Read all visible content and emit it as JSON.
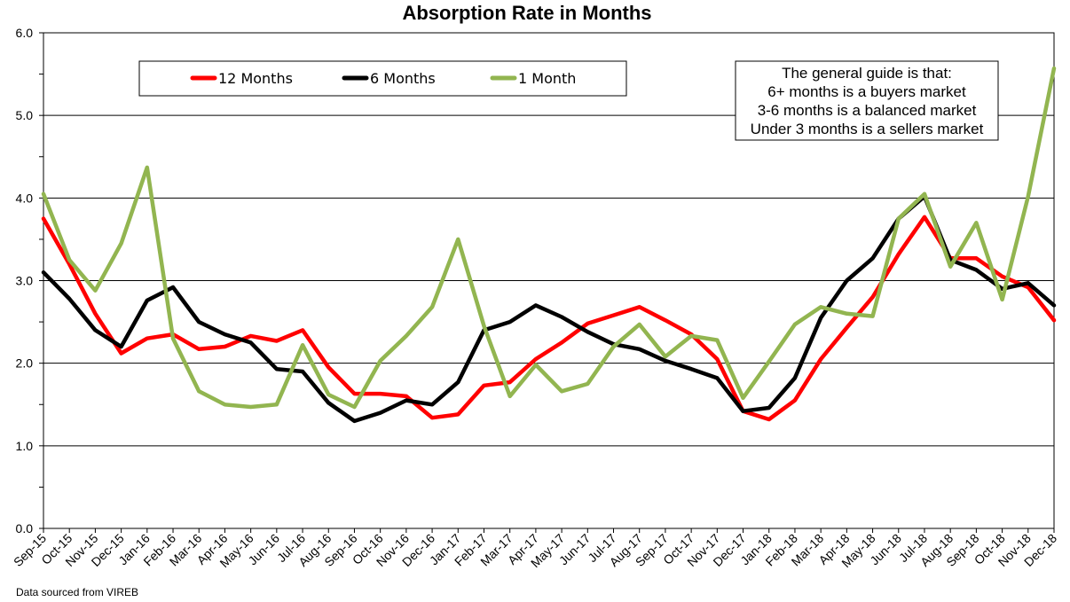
{
  "chart_data": {
    "type": "line",
    "title": "Absorption Rate in Months",
    "x": [
      "Sep-15",
      "Oct-15",
      "Nov-15",
      "Dec-15",
      "Jan-16",
      "Feb-16",
      "Mar-16",
      "Apr-16",
      "May-16",
      "Jun-16",
      "Jul-16",
      "Aug-16",
      "Sep-16",
      "Oct-16",
      "Nov-16",
      "Dec-16",
      "Jan-17",
      "Feb-17",
      "Mar-17",
      "Apr-17",
      "May-17",
      "Jun-17",
      "Jul-17",
      "Aug-17",
      "Sep-17",
      "Oct-17",
      "Nov-17",
      "Dec-17",
      "Jan-18",
      "Feb-18",
      "Mar-18",
      "Apr-18",
      "May-18",
      "Jun-18",
      "Jul-18",
      "Aug-18",
      "Sep-18",
      "Oct-18",
      "Nov-18",
      "Dec-18"
    ],
    "yticks": [
      "0.0",
      "1.0",
      "2.0",
      "3.0",
      "4.0",
      "5.0",
      "6.0"
    ],
    "ylim": [
      0,
      6
    ],
    "grid": "horizontal major lines",
    "legend_position": "top-left",
    "series": [
      {
        "name": "12 Months",
        "color": "#ff0000",
        "values": [
          3.75,
          3.2,
          2.6,
          2.12,
          2.3,
          2.35,
          2.17,
          2.2,
          2.33,
          2.27,
          2.4,
          1.95,
          1.63,
          1.63,
          1.6,
          1.34,
          1.38,
          1.73,
          1.77,
          2.05,
          2.25,
          2.48,
          2.58,
          2.68,
          2.52,
          2.35,
          2.05,
          1.42,
          1.32,
          1.55,
          2.05,
          2.43,
          2.8,
          3.32,
          3.77,
          3.27,
          3.27,
          3.05,
          2.92,
          2.52
        ]
      },
      {
        "name": "6 Months",
        "color": "#000000",
        "values": [
          3.1,
          2.78,
          2.4,
          2.2,
          2.76,
          2.92,
          2.5,
          2.35,
          2.25,
          1.93,
          1.9,
          1.52,
          1.3,
          1.4,
          1.55,
          1.5,
          1.77,
          2.4,
          2.5,
          2.7,
          2.56,
          2.38,
          2.23,
          2.17,
          2.03,
          1.93,
          1.82,
          1.42,
          1.46,
          1.82,
          2.55,
          3.0,
          3.27,
          3.75,
          4.02,
          3.25,
          3.13,
          2.9,
          2.97,
          2.7
        ]
      },
      {
        "name": "1 Month",
        "color": "#92b550",
        "values": [
          4.05,
          3.25,
          2.88,
          3.45,
          4.37,
          2.3,
          1.66,
          1.5,
          1.47,
          1.5,
          2.22,
          1.62,
          1.47,
          2.03,
          2.33,
          2.68,
          3.5,
          2.45,
          1.6,
          1.98,
          1.66,
          1.75,
          2.2,
          2.47,
          2.08,
          2.33,
          2.28,
          1.58,
          2.02,
          2.47,
          2.68,
          2.6,
          2.57,
          3.75,
          4.05,
          3.17,
          3.7,
          2.77,
          4.02,
          5.57
        ]
      }
    ],
    "annotation": [
      "The general guide is that:",
      "6+ months is a buyers market",
      "3-6 months is a balanced market",
      "Under 3 months is a sellers market"
    ],
    "source_note": "Data sourced from VIREB"
  }
}
